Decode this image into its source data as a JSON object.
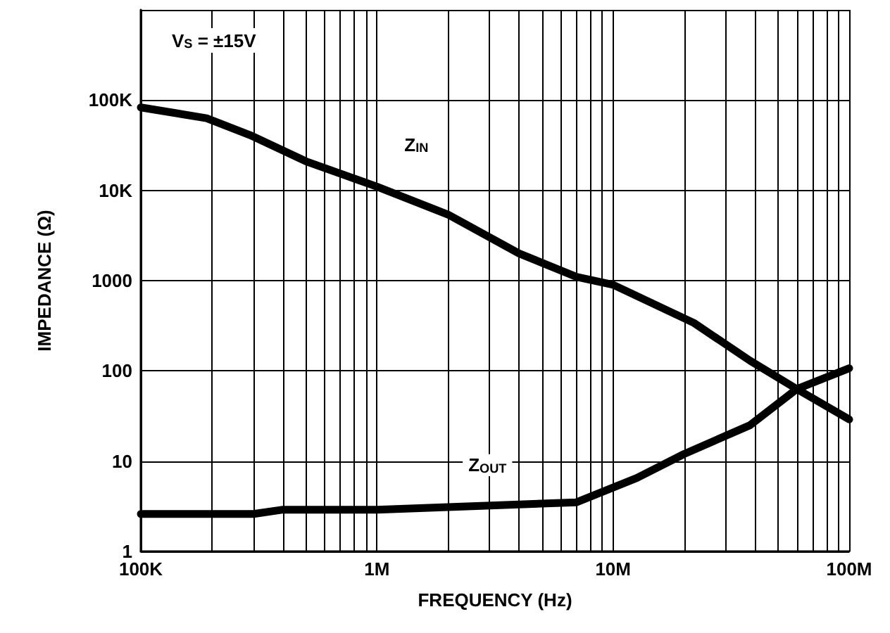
{
  "chart_data": {
    "type": "line",
    "xlabel": "FREQUENCY (Hz)",
    "ylabel": "IMPEDANCE (Ω)",
    "annotations": [
      "V$_{S}$ = ±15V"
    ],
    "log": "xy",
    "grid": true,
    "legend": false,
    "marker": "none",
    "line_style": "solid",
    "xlim": [
      100000,
      100000000
    ],
    "xticks": [
      {
        "value": 100000,
        "label": "100K"
      },
      {
        "value": 200000,
        "label": null
      },
      {
        "value": 300000,
        "label": null
      },
      {
        "value": 400000,
        "label": null
      },
      {
        "value": 500000,
        "label": null
      },
      {
        "value": 600000,
        "label": null
      },
      {
        "value": 700000,
        "label": null
      },
      {
        "value": 800000,
        "label": null
      },
      {
        "value": 900000,
        "label": null
      },
      {
        "value": 1000000,
        "label": "1M"
      },
      {
        "value": 2000000,
        "label": null
      },
      {
        "value": 3000000,
        "label": null
      },
      {
        "value": 4000000,
        "label": null
      },
      {
        "value": 5000000,
        "label": null
      },
      {
        "value": 6000000,
        "label": null
      },
      {
        "value": 7000000,
        "label": null
      },
      {
        "value": 8000000,
        "label": null
      },
      {
        "value": 9000000,
        "label": null
      },
      {
        "value": 10000000,
        "label": "10M"
      },
      {
        "value": 20000000,
        "label": null
      },
      {
        "value": 30000000,
        "label": null
      },
      {
        "value": 40000000,
        "label": null
      },
      {
        "value": 50000000,
        "label": null
      },
      {
        "value": 60000000,
        "label": null
      },
      {
        "value": 70000000,
        "label": null
      },
      {
        "value": 80000000,
        "label": null
      },
      {
        "value": 90000000,
        "label": null
      },
      {
        "value": 100000000,
        "label": "100M"
      }
    ],
    "ylim": [
      1,
      1000000
    ],
    "yticks": [
      1,
      10,
      100,
      1000,
      {
        "value": 10000,
        "label": "10K"
      },
      {
        "value": 100000,
        "label": "100K"
      },
      {
        "value": 1000000,
        "label": null
      }
    ],
    "series": [
      {
        "name": "Z$_{IN}$",
        "color": "#000000",
        "x": [
          100000,
          190000,
          290000,
          500000,
          1000000,
          2000000,
          4000000,
          7000000,
          10000000,
          22000000,
          38000000,
          60000000,
          100000000
        ],
        "values": [
          83000,
          63000,
          41000,
          21000,
          11000,
          5400,
          2000,
          1100,
          900,
          340,
          130,
          63,
          29
        ]
      },
      {
        "name": "Z$_{OUT}$",
        "color": "#000000",
        "x": [
          100000,
          300000,
          400000,
          1000000,
          2000000,
          7000000,
          12600000,
          20000000,
          38000000,
          60000000,
          100000000
        ],
        "values": [
          2.6,
          2.6,
          2.9,
          2.9,
          3.1,
          3.5,
          6.5,
          12,
          25,
          63,
          107
        ]
      }
    ]
  }
}
